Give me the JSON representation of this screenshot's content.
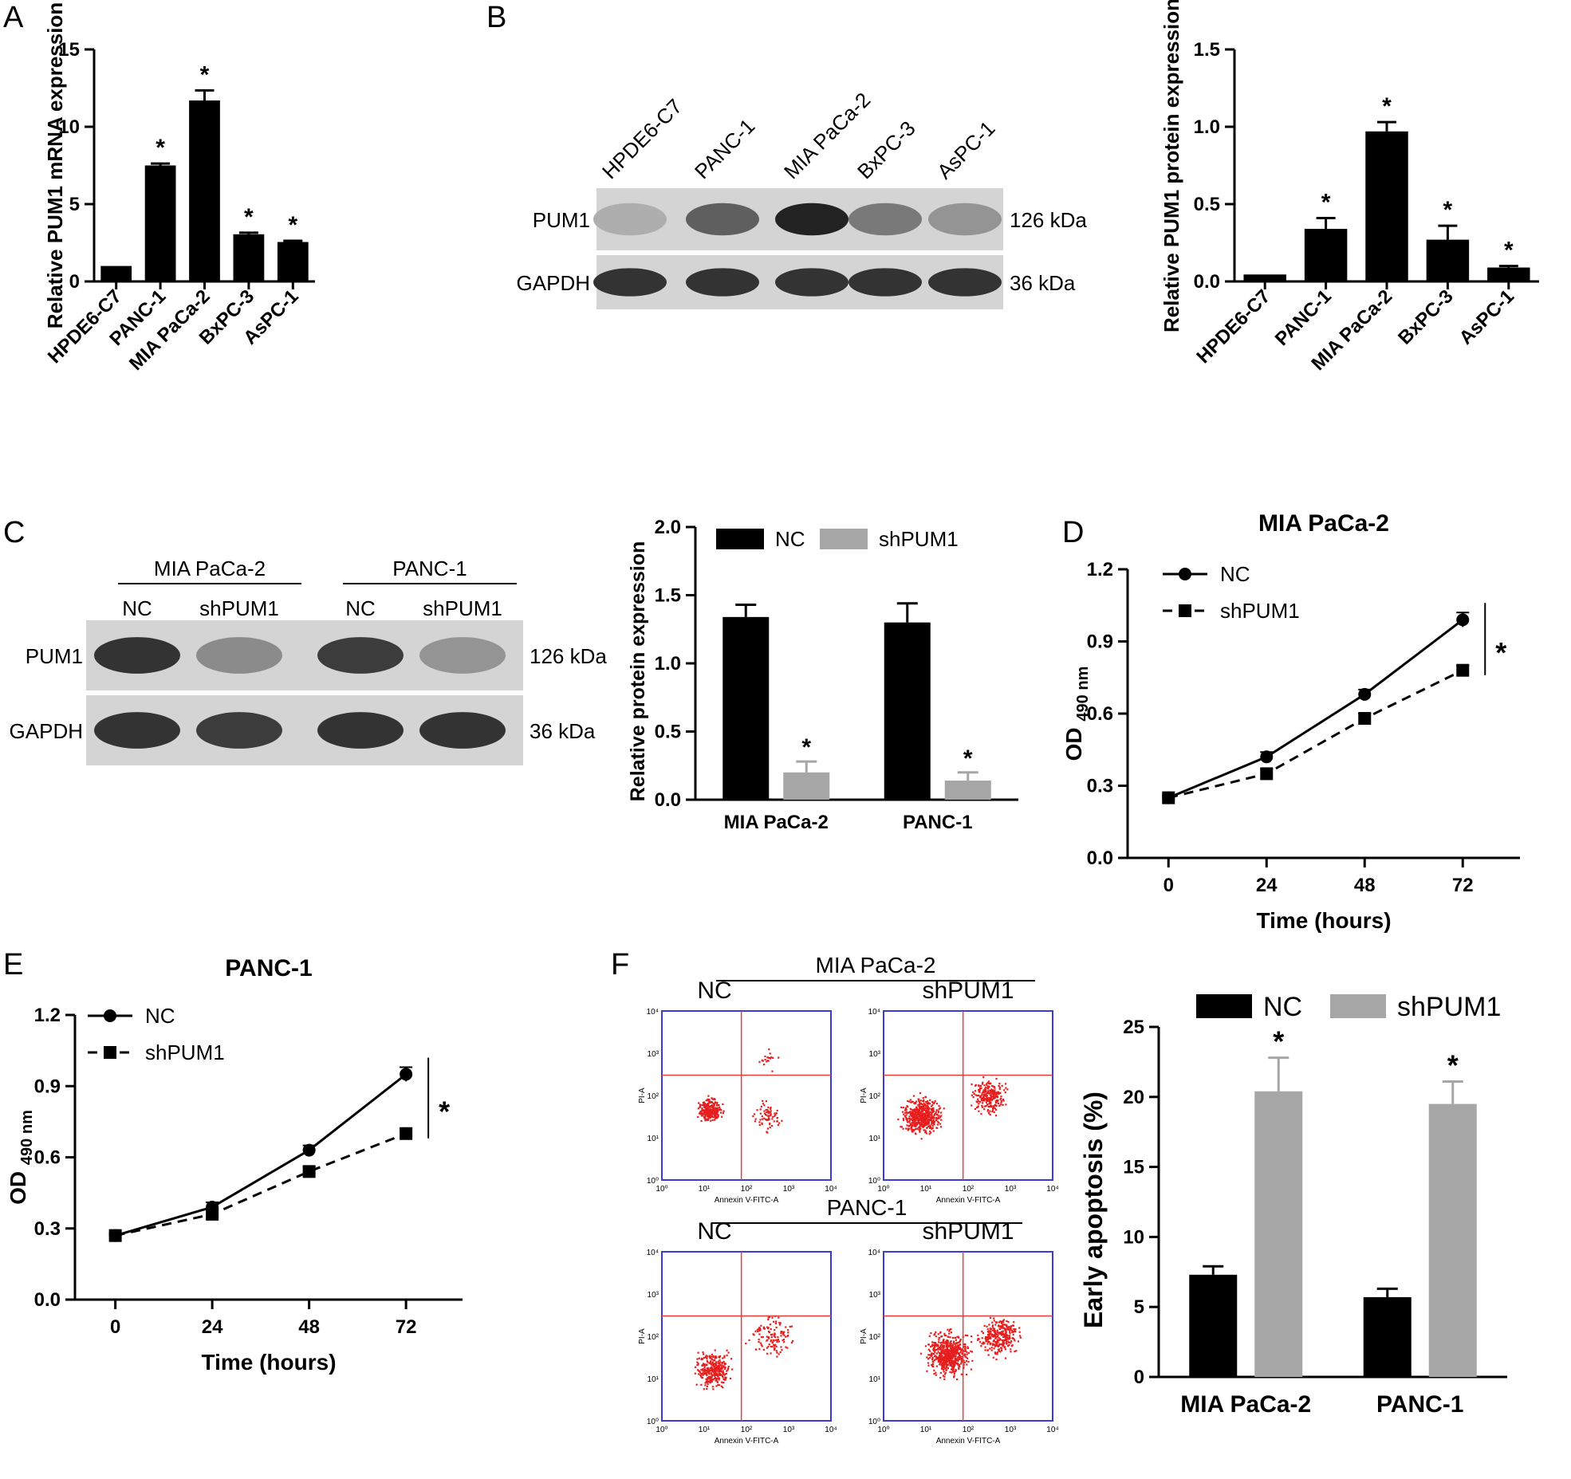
{
  "panels": {
    "A": {
      "letter": "A"
    },
    "B": {
      "letter": "B"
    },
    "C": {
      "letter": "C"
    },
    "D": {
      "letter": "D"
    },
    "E": {
      "letter": "E"
    },
    "F": {
      "letter": "F"
    }
  },
  "western_B": {
    "lanes": [
      "HPDE6-C7",
      "PANC-1",
      "MIA PaCa-2",
      "BxPC-3",
      "AsPC-1"
    ],
    "bands": [
      {
        "label": "PUM1",
        "kda": "126 kDa",
        "intensity": [
          0.15,
          0.6,
          0.95,
          0.45,
          0.3
        ]
      },
      {
        "label": "GAPDH",
        "kda": "36 kDa",
        "intensity": [
          0.85,
          0.85,
          0.85,
          0.85,
          0.85
        ]
      }
    ]
  },
  "western_C": {
    "groups": [
      "MIA PaCa-2",
      "PANC-1"
    ],
    "lanes": [
      "NC",
      "shPUM1",
      "NC",
      "shPUM1"
    ],
    "bands": [
      {
        "label": "PUM1",
        "kda": "126 kDa",
        "intensity": [
          0.85,
          0.35,
          0.8,
          0.3
        ]
      },
      {
        "label": "GAPDH",
        "kda": "36 kDa",
        "intensity": [
          0.85,
          0.8,
          0.85,
          0.85
        ]
      }
    ]
  },
  "flow_F": {
    "groups": [
      {
        "title": "MIA PaCa-2",
        "conditions": [
          "NC",
          "shPUM1"
        ]
      },
      {
        "title": "PANC-1",
        "conditions": [
          "NC",
          "shPUM1"
        ]
      }
    ],
    "x_axis_label": "Annexin V-FITC-A",
    "y_axis_label": "PI-A",
    "tick_labels": [
      "10⁰",
      "10¹",
      "10²",
      "10³",
      "10⁴"
    ]
  },
  "chart_data": [
    {
      "id": "A",
      "type": "bar",
      "title": "",
      "categories": [
        "HPDE6-C7",
        "PANC-1",
        "MIA PaCa-2",
        "BxPC-3",
        "AsPC-1"
      ],
      "values": [
        1.0,
        7.5,
        11.7,
        3.05,
        2.55
      ],
      "errors": [
        0,
        0.12,
        0.65,
        0.1,
        0.08
      ],
      "significance": [
        "",
        "*",
        "*",
        "*",
        "*"
      ],
      "ylabel": "Relative PUM1 mRNA expression",
      "xlabel": "",
      "ylim": [
        0,
        15
      ],
      "yticks": [
        0,
        5,
        10,
        15
      ],
      "tick_labels": [
        "0",
        "5",
        "10",
        "15"
      ]
    },
    {
      "id": "B",
      "type": "bar",
      "title": "",
      "categories": [
        "HPDE6-C7",
        "PANC-1",
        "MIA PaCa-2",
        "BxPC-3",
        "AsPC-1"
      ],
      "values": [
        0.045,
        0.34,
        0.97,
        0.27,
        0.09
      ],
      "errors": [
        0,
        0.07,
        0.06,
        0.09,
        0.01
      ],
      "significance": [
        "",
        "*",
        "*",
        "*",
        "*"
      ],
      "ylabel": "Relative PUM1 protein expression",
      "xlabel": "",
      "ylim": [
        0,
        1.5
      ],
      "yticks": [
        0,
        0.5,
        1.0,
        1.5
      ],
      "tick_labels": [
        "0.0",
        "0.5",
        "1.0",
        "1.5"
      ]
    },
    {
      "id": "C",
      "type": "bar",
      "title": "",
      "categories": [
        "MIA PaCa-2",
        "PANC-1"
      ],
      "series": [
        {
          "name": "NC",
          "values": [
            1.34,
            1.3
          ],
          "errors": [
            0.09,
            0.14
          ],
          "color": "#000000",
          "significance": [
            "",
            ""
          ]
        },
        {
          "name": "shPUM1",
          "values": [
            0.2,
            0.14
          ],
          "errors": [
            0.08,
            0.06
          ],
          "color": "#a6a6a6",
          "significance": [
            "*",
            "*"
          ]
        }
      ],
      "ylabel": "Relative protein expression",
      "xlabel": "",
      "ylim": [
        0,
        2.0
      ],
      "yticks": [
        0,
        0.5,
        1.0,
        1.5,
        2.0
      ],
      "tick_labels": [
        "0.0",
        "0.5",
        "1.0",
        "1.5",
        "2.0"
      ],
      "legend": "top"
    },
    {
      "id": "D",
      "type": "line",
      "title": "MIA PaCa-2",
      "x": [
        0,
        24,
        48,
        72
      ],
      "series": [
        {
          "name": "NC",
          "values": [
            0.25,
            0.42,
            0.68,
            0.99
          ],
          "errors": [
            0.01,
            0.02,
            0.02,
            0.03
          ],
          "style": "solid",
          "marker": "circle"
        },
        {
          "name": "shPUM1",
          "values": [
            0.25,
            0.35,
            0.58,
            0.78
          ],
          "errors": [
            0.01,
            0.02,
            0.02,
            0.02
          ],
          "style": "dashed",
          "marker": "square"
        }
      ],
      "significance": "*",
      "ylabel": "OD",
      "ylabel_sub": "490 nm",
      "xlabel": "Time (hours)",
      "ylim": [
        0,
        1.2
      ],
      "yticks": [
        0,
        0.3,
        0.6,
        0.9,
        1.2
      ],
      "tick_labels": [
        "0.0",
        "0.3",
        "0.6",
        "0.9",
        "1.2"
      ],
      "xtick_labels": [
        "0",
        "24",
        "48",
        "72"
      ],
      "legend": "top-left"
    },
    {
      "id": "E",
      "type": "line",
      "title": "PANC-1",
      "x": [
        0,
        24,
        48,
        72
      ],
      "series": [
        {
          "name": "NC",
          "values": [
            0.27,
            0.39,
            0.63,
            0.95
          ],
          "errors": [
            0.01,
            0.02,
            0.02,
            0.03
          ],
          "style": "solid",
          "marker": "circle"
        },
        {
          "name": "shPUM1",
          "values": [
            0.27,
            0.36,
            0.54,
            0.7
          ],
          "errors": [
            0.01,
            0.02,
            0.02,
            0.02
          ],
          "style": "dashed",
          "marker": "square"
        }
      ],
      "significance": "*",
      "ylabel": "OD",
      "ylabel_sub": "490 nm",
      "xlabel": "Time (hours)",
      "ylim": [
        0,
        1.2
      ],
      "yticks": [
        0,
        0.3,
        0.6,
        0.9,
        1.2
      ],
      "tick_labels": [
        "0.0",
        "0.3",
        "0.6",
        "0.9",
        "1.2"
      ],
      "xtick_labels": [
        "0",
        "24",
        "48",
        "72"
      ],
      "legend": "top-left"
    },
    {
      "id": "F",
      "type": "bar",
      "title": "",
      "categories": [
        "MIA PaCa-2",
        "PANC-1"
      ],
      "series": [
        {
          "name": "NC",
          "values": [
            7.3,
            5.7
          ],
          "errors": [
            0.6,
            0.6
          ],
          "color": "#000000",
          "significance": [
            "",
            ""
          ]
        },
        {
          "name": "shPUM1",
          "values": [
            20.4,
            19.5
          ],
          "errors": [
            2.4,
            1.6
          ],
          "color": "#a6a6a6",
          "significance": [
            "*",
            "*"
          ]
        }
      ],
      "ylabel": "Early apoptosis (%)",
      "xlabel": "",
      "ylim": [
        0,
        25
      ],
      "yticks": [
        0,
        5,
        10,
        15,
        20,
        25
      ],
      "tick_labels": [
        "0",
        "5",
        "10",
        "15",
        "20",
        "25"
      ],
      "legend": "top"
    }
  ]
}
